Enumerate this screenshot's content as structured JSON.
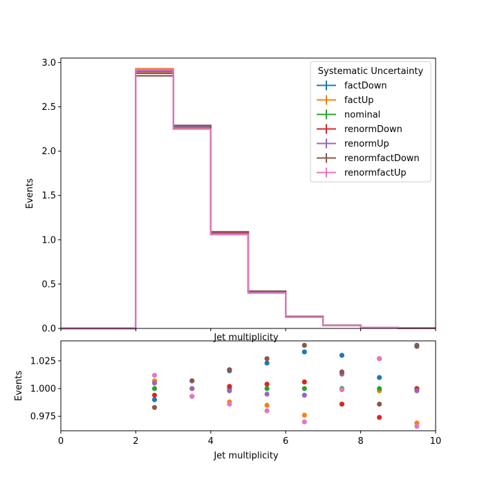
{
  "colors": {
    "factDown": "#1f77b4",
    "factUp": "#ff7f0e",
    "nominal": "#2ca02c",
    "renormDown": "#d62728",
    "renormUp": "#9467bd",
    "renormfactDown": "#8c564b",
    "renormfactUp": "#e377c2"
  },
  "chart_data": [
    {
      "type": "line",
      "drawstyle": "steps-post",
      "xlabel": "Jet multiplicity",
      "ylabel": "Events",
      "xlim": [
        0,
        10
      ],
      "ylim": [
        0,
        3.05
      ],
      "xticks": [
        "0",
        "2",
        "4",
        "6",
        "8",
        "10"
      ],
      "yticks": [
        "0.0",
        "0.5",
        "1.0",
        "1.5",
        "2.0",
        "2.5",
        "3.0"
      ],
      "bin_edges": [
        0,
        1,
        2,
        3,
        4,
        5,
        6,
        7,
        8,
        9,
        10
      ],
      "legend": {
        "title": "Systematic Uncertainty",
        "loc": "upper right"
      },
      "series": [
        {
          "name": "factDown",
          "values": [
            0,
            0,
            2.88,
            2.28,
            1.09,
            0.42,
            0.135,
            0.035,
            0.01,
            0.004
          ]
        },
        {
          "name": "factUp",
          "values": [
            0,
            0,
            2.93,
            2.26,
            1.06,
            0.4,
            0.128,
            0.033,
            0.01,
            0.004
          ]
        },
        {
          "name": "nominal",
          "values": [
            0,
            0,
            2.9,
            2.27,
            1.07,
            0.41,
            0.131,
            0.034,
            0.01,
            0.004
          ]
        },
        {
          "name": "renormDown",
          "values": [
            0,
            0,
            2.88,
            2.27,
            1.08,
            0.41,
            0.132,
            0.033,
            0.01,
            0.004
          ]
        },
        {
          "name": "renormUp",
          "values": [
            0,
            0,
            2.91,
            2.27,
            1.07,
            0.41,
            0.131,
            0.034,
            0.01,
            0.004
          ]
        },
        {
          "name": "renormfactDown",
          "values": [
            0,
            0,
            2.85,
            2.29,
            1.09,
            0.42,
            0.136,
            0.035,
            0.01,
            0.004
          ]
        },
        {
          "name": "renormfactUp",
          "values": [
            0,
            0,
            2.92,
            2.25,
            1.06,
            0.4,
            0.127,
            0.033,
            0.01,
            0.004
          ]
        }
      ]
    },
    {
      "type": "scatter",
      "xlabel": "Jet multiplicity",
      "ylabel": "Events",
      "xlim": [
        0,
        10
      ],
      "ylim": [
        0.962,
        1.043
      ],
      "xticks": [
        "0",
        "2",
        "4",
        "6",
        "8",
        "10"
      ],
      "yticks": [
        "0.975",
        "1.000",
        "1.025"
      ],
      "x": [
        2.5,
        3.5,
        4.5,
        5.5,
        6.5,
        7.5,
        8.5,
        9.5
      ],
      "series": [
        {
          "name": "factDown",
          "values": [
            0.99,
            1.007,
            1.016,
            1.023,
            1.033,
            1.03,
            1.01,
            1.039
          ]
        },
        {
          "name": "factUp",
          "values": [
            1.007,
            0.993,
            0.988,
            0.985,
            0.976,
            0.986,
            0.998,
            0.969
          ]
        },
        {
          "name": "nominal",
          "values": [
            1.0,
            1.0,
            1.0,
            1.0,
            1.0,
            1.0,
            1.0,
            1.0
          ]
        },
        {
          "name": "renormDown",
          "values": [
            0.994,
            1.0,
            1.002,
            1.004,
            1.006,
            0.986,
            0.974,
            1.0
          ]
        },
        {
          "name": "renormUp",
          "values": [
            1.005,
            1.0,
            0.998,
            0.995,
            0.994,
            1.013,
            1.027,
            0.998
          ]
        },
        {
          "name": "renormfactDown",
          "values": [
            0.983,
            1.007,
            1.017,
            1.027,
            1.039,
            1.015,
            0.986,
            1.038
          ]
        },
        {
          "name": "renormfactUp",
          "values": [
            1.012,
            0.993,
            0.986,
            0.98,
            0.97,
            0.999,
            1.027,
            0.966
          ]
        }
      ]
    }
  ]
}
